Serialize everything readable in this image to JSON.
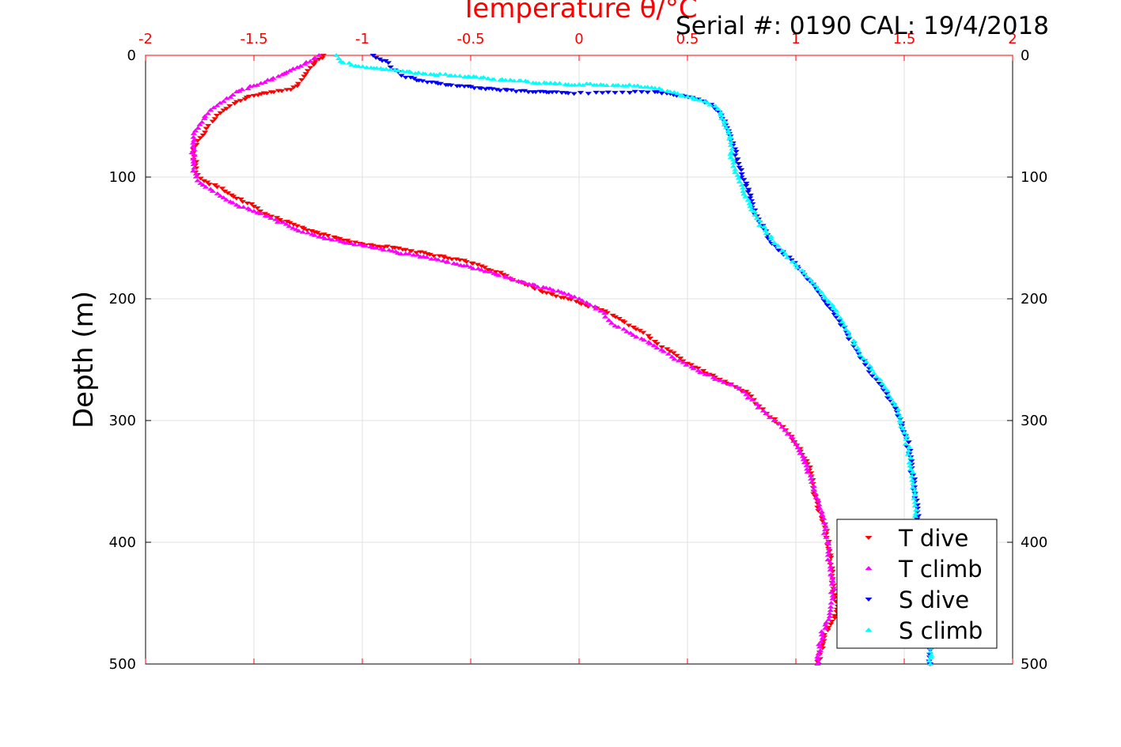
{
  "chart_data": {
    "type": "scatter",
    "title": "Temperature θ/°C",
    "annotation": "Serial #: 0190  CAL: 19/4/2018",
    "ylabel": "Depth (m)",
    "xlim": [
      -2,
      2
    ],
    "ylim": [
      0,
      500
    ],
    "y_reversed": true,
    "x_axis_position": "top",
    "x_ticks": [
      "-2",
      "-1.5",
      "-1",
      "-0.5",
      "0",
      "0.5",
      "1",
      "1.5",
      "2"
    ],
    "y_ticks": [
      "0",
      "100",
      "200",
      "300",
      "400",
      "500"
    ],
    "grid": true,
    "legend_position": "bottom-right",
    "series": [
      {
        "name": "T dive",
        "color": "#ff0000",
        "marker": "triangle-down",
        "points": [
          [
            -1.18,
            0
          ],
          [
            -1.2,
            3
          ],
          [
            -1.22,
            6
          ],
          [
            -1.24,
            10
          ],
          [
            -1.26,
            15
          ],
          [
            -1.28,
            20
          ],
          [
            -1.3,
            25
          ],
          [
            -1.33,
            28
          ],
          [
            -1.42,
            30
          ],
          [
            -1.5,
            33
          ],
          [
            -1.58,
            38
          ],
          [
            -1.64,
            45
          ],
          [
            -1.68,
            52
          ],
          [
            -1.72,
            60
          ],
          [
            -1.76,
            70
          ],
          [
            -1.78,
            80
          ],
          [
            -1.77,
            90
          ],
          [
            -1.76,
            98
          ],
          [
            -1.73,
            103
          ],
          [
            -1.67,
            108
          ],
          [
            -1.62,
            113
          ],
          [
            -1.56,
            118
          ],
          [
            -1.5,
            124
          ],
          [
            -1.45,
            130
          ],
          [
            -1.38,
            135
          ],
          [
            -1.3,
            140
          ],
          [
            -1.22,
            145
          ],
          [
            -1.12,
            150
          ],
          [
            -1.0,
            155
          ],
          [
            -0.85,
            158
          ],
          [
            -0.7,
            163
          ],
          [
            -0.55,
            168
          ],
          [
            -0.45,
            173
          ],
          [
            -0.35,
            180
          ],
          [
            -0.25,
            188
          ],
          [
            -0.15,
            195
          ],
          [
            -0.05,
            200
          ],
          [
            0.03,
            205
          ],
          [
            0.12,
            210
          ],
          [
            0.2,
            218
          ],
          [
            0.28,
            226
          ],
          [
            0.35,
            235
          ],
          [
            0.42,
            243
          ],
          [
            0.5,
            253
          ],
          [
            0.6,
            262
          ],
          [
            0.7,
            270
          ],
          [
            0.78,
            278
          ],
          [
            0.83,
            288
          ],
          [
            0.88,
            297
          ],
          [
            0.94,
            305
          ],
          [
            0.98,
            313
          ],
          [
            1.02,
            323
          ],
          [
            1.05,
            333
          ],
          [
            1.07,
            343
          ],
          [
            1.08,
            355
          ],
          [
            1.1,
            368
          ],
          [
            1.12,
            380
          ],
          [
            1.14,
            393
          ],
          [
            1.15,
            405
          ],
          [
            1.16,
            418
          ],
          [
            1.17,
            430
          ],
          [
            1.18,
            443
          ],
          [
            1.19,
            455
          ],
          [
            1.18,
            462
          ],
          [
            1.15,
            470
          ],
          [
            1.13,
            478
          ],
          [
            1.12,
            485
          ],
          [
            1.11,
            492
          ],
          [
            1.1,
            498
          ]
        ]
      },
      {
        "name": "T climb",
        "color": "#ff00ff",
        "marker": "triangle-up",
        "points": [
          [
            -1.2,
            0
          ],
          [
            -1.24,
            5
          ],
          [
            -1.3,
            10
          ],
          [
            -1.36,
            15
          ],
          [
            -1.42,
            20
          ],
          [
            -1.5,
            25
          ],
          [
            -1.58,
            30
          ],
          [
            -1.64,
            38
          ],
          [
            -1.7,
            45
          ],
          [
            -1.74,
            55
          ],
          [
            -1.77,
            62
          ],
          [
            -1.78,
            72
          ],
          [
            -1.78,
            85
          ],
          [
            -1.78,
            95
          ],
          [
            -1.76,
            103
          ],
          [
            -1.7,
            110
          ],
          [
            -1.64,
            117
          ],
          [
            -1.58,
            123
          ],
          [
            -1.5,
            128
          ],
          [
            -1.4,
            135
          ],
          [
            -1.32,
            142
          ],
          [
            -1.22,
            148
          ],
          [
            -1.1,
            153
          ],
          [
            -0.95,
            158
          ],
          [
            -0.8,
            163
          ],
          [
            -0.65,
            168
          ],
          [
            -0.5,
            174
          ],
          [
            -0.38,
            180
          ],
          [
            -0.25,
            187
          ],
          [
            -0.12,
            193
          ],
          [
            0.0,
            200
          ],
          [
            0.05,
            205
          ],
          [
            0.1,
            210
          ],
          [
            0.15,
            220
          ],
          [
            0.22,
            227
          ],
          [
            0.3,
            234
          ],
          [
            0.38,
            242
          ],
          [
            0.46,
            251
          ],
          [
            0.55,
            259
          ],
          [
            0.65,
            267
          ],
          [
            0.74,
            274
          ],
          [
            0.8,
            283
          ],
          [
            0.85,
            292
          ],
          [
            0.9,
            300
          ],
          [
            0.95,
            308
          ],
          [
            0.99,
            317
          ],
          [
            1.02,
            327
          ],
          [
            1.05,
            337
          ],
          [
            1.07,
            348
          ],
          [
            1.09,
            360
          ],
          [
            1.11,
            372
          ],
          [
            1.13,
            384
          ],
          [
            1.14,
            396
          ],
          [
            1.15,
            408
          ],
          [
            1.16,
            420
          ],
          [
            1.17,
            432
          ],
          [
            1.17,
            444
          ],
          [
            1.16,
            456
          ],
          [
            1.14,
            466
          ],
          [
            1.12,
            476
          ],
          [
            1.11,
            486
          ],
          [
            1.1,
            496
          ],
          [
            1.1,
            500
          ]
        ]
      },
      {
        "name": "S dive",
        "color": "#0000ff",
        "marker": "triangle-down",
        "points": [
          [
            -0.95,
            0
          ],
          [
            -0.92,
            3
          ],
          [
            -0.88,
            6
          ],
          [
            -0.85,
            12
          ],
          [
            -0.8,
            18
          ],
          [
            -0.7,
            22
          ],
          [
            -0.55,
            25
          ],
          [
            -0.38,
            28
          ],
          [
            -0.2,
            30
          ],
          [
            -0.05,
            31
          ],
          [
            0.35,
            30
          ],
          [
            0.45,
            33
          ],
          [
            0.55,
            36
          ],
          [
            0.62,
            42
          ],
          [
            0.66,
            52
          ],
          [
            0.69,
            62
          ],
          [
            0.71,
            72
          ],
          [
            0.72,
            82
          ],
          [
            0.74,
            92
          ],
          [
            0.76,
            102
          ],
          [
            0.78,
            112
          ],
          [
            0.8,
            122
          ],
          [
            0.82,
            132
          ],
          [
            0.85,
            142
          ],
          [
            0.88,
            152
          ],
          [
            0.92,
            160
          ],
          [
            0.98,
            168
          ],
          [
            1.03,
            178
          ],
          [
            1.08,
            188
          ],
          [
            1.12,
            198
          ],
          [
            1.16,
            208
          ],
          [
            1.2,
            218
          ],
          [
            1.24,
            230
          ],
          [
            1.28,
            242
          ],
          [
            1.32,
            254
          ],
          [
            1.37,
            266
          ],
          [
            1.42,
            278
          ],
          [
            1.46,
            290
          ],
          [
            1.49,
            302
          ],
          [
            1.51,
            315
          ],
          [
            1.53,
            330
          ],
          [
            1.54,
            345
          ],
          [
            1.55,
            360
          ],
          [
            1.56,
            375
          ],
          [
            1.57,
            390
          ],
          [
            1.58,
            405
          ],
          [
            1.59,
            420
          ],
          [
            1.6,
            440
          ],
          [
            1.61,
            460
          ],
          [
            1.62,
            480
          ],
          [
            1.62,
            500
          ]
        ]
      },
      {
        "name": "S climb",
        "color": "#00ffff",
        "marker": "triangle-up",
        "points": [
          [
            -1.12,
            0
          ],
          [
            -1.1,
            5
          ],
          [
            -1.05,
            8
          ],
          [
            -0.98,
            10
          ],
          [
            -0.85,
            12
          ],
          [
            -0.72,
            15
          ],
          [
            -0.55,
            17
          ],
          [
            -0.42,
            19
          ],
          [
            -0.3,
            21
          ],
          [
            -0.15,
            23
          ],
          [
            -0.05,
            24
          ],
          [
            0.1,
            24
          ],
          [
            0.27,
            25
          ],
          [
            0.35,
            27
          ],
          [
            0.42,
            30
          ],
          [
            0.5,
            34
          ],
          [
            0.58,
            38
          ],
          [
            0.64,
            44
          ],
          [
            0.67,
            54
          ],
          [
            0.69,
            64
          ],
          [
            0.7,
            74
          ],
          [
            0.7,
            84
          ],
          [
            0.72,
            94
          ],
          [
            0.74,
            104
          ],
          [
            0.76,
            114
          ],
          [
            0.79,
            124
          ],
          [
            0.82,
            134
          ],
          [
            0.86,
            144
          ],
          [
            0.9,
            154
          ],
          [
            0.95,
            163
          ],
          [
            1.0,
            172
          ],
          [
            1.05,
            182
          ],
          [
            1.1,
            192
          ],
          [
            1.15,
            202
          ],
          [
            1.19,
            213
          ],
          [
            1.23,
            225
          ],
          [
            1.27,
            237
          ],
          [
            1.31,
            249
          ],
          [
            1.36,
            261
          ],
          [
            1.41,
            273
          ],
          [
            1.45,
            285
          ],
          [
            1.48,
            297
          ],
          [
            1.5,
            310
          ],
          [
            1.52,
            325
          ],
          [
            1.53,
            340
          ],
          [
            1.54,
            355
          ],
          [
            1.55,
            370
          ],
          [
            1.56,
            385
          ],
          [
            1.57,
            400
          ],
          [
            1.58,
            415
          ],
          [
            1.59,
            430
          ],
          [
            1.6,
            450
          ],
          [
            1.61,
            470
          ],
          [
            1.62,
            490
          ],
          [
            1.62,
            500
          ]
        ]
      }
    ]
  }
}
